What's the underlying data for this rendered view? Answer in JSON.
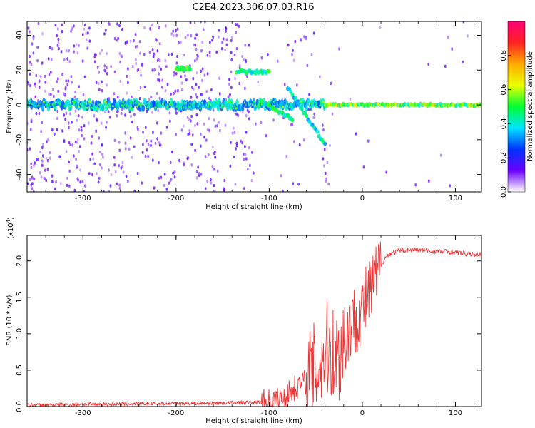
{
  "title": "C2E4.2023.306.07.03.R16",
  "chart_data": [
    {
      "type": "heatmap",
      "xlabel": "Height of straight line (km)",
      "ylabel": "Frequency (Hz)",
      "xlim": [
        -360,
        128
      ],
      "ylim": [
        -50,
        48
      ],
      "xticks": [
        -300,
        -200,
        -100,
        0,
        100
      ],
      "xtick_labels": [
        "-300",
        "-200",
        "-100",
        "0",
        "100"
      ],
      "yticks": [
        -40,
        -20,
        0,
        20,
        40
      ],
      "ytick_labels": [
        "-40",
        "-20",
        "0",
        "20",
        "40"
      ],
      "colorbar": {
        "label": "Normalized spectral amplitude",
        "range": [
          0.0,
          1.0
        ],
        "ticks": [
          0.0,
          0.2,
          0.4,
          0.6,
          0.8
        ],
        "tick_labels": [
          "0.0",
          "0.2",
          "0.4",
          "0.6",
          "0.8"
        ],
        "colors": [
          "#ffffff",
          "#6a00ff",
          "#0033ff",
          "#00e5ff",
          "#00ff33",
          "#eaff00",
          "#ffaa00",
          "#ff2222",
          "#ff0077"
        ]
      },
      "features": [
        {
          "name": "carrier",
          "x_range": [
            -360,
            128
          ],
          "freq": 0,
          "amplitude": 0.35
        },
        {
          "name": "upper-branch",
          "x": [
            -200,
            -185
          ],
          "freq": 21,
          "amplitude": 0.5
        },
        {
          "name": "upper-branch-2",
          "x": [
            -135,
            -100
          ],
          "freq": 19,
          "amplitude": 0.45
        },
        {
          "name": "descending-branch",
          "x": [
            -110,
            -75
          ],
          "freq": [
            2,
            -8
          ],
          "amplitude": 0.45
        },
        {
          "name": "descending-branch-2",
          "x": [
            -80,
            -40
          ],
          "freq": [
            10,
            -23
          ],
          "amplitude": 0.4
        }
      ]
    },
    {
      "type": "line",
      "xlabel": "Height of straight line (km)",
      "ylabel": "SNR (10 * v/v)",
      "multiplier": "(x10",
      "multiplier_exp": "4",
      "xlim": [
        -360,
        128
      ],
      "ylim": [
        0,
        23500
      ],
      "xticks": [
        -300,
        -200,
        -100,
        0,
        100
      ],
      "xtick_labels": [
        "-300",
        "-200",
        "-100",
        "0",
        "100"
      ],
      "yticks": [
        0,
        5000,
        10000,
        15000,
        20000
      ],
      "ytick_labels": [
        "0.0",
        "0.5",
        "1.0",
        "1.5",
        "2.0"
      ],
      "series": [
        {
          "color": "#ee3333",
          "x": [
            -360,
            -300,
            -200,
            -150,
            -110,
            -90,
            -80,
            -70,
            -60,
            -50,
            -40,
            -35,
            -30,
            -25,
            -20,
            -15,
            -10,
            -5,
            0,
            5,
            10,
            15,
            20,
            25,
            30,
            40,
            50,
            60,
            70,
            80,
            90,
            100,
            110,
            120,
            128
          ],
          "y": [
            200,
            300,
            400,
            500,
            600,
            900,
            1800,
            2800,
            3500,
            5000,
            7500,
            8000,
            7200,
            6500,
            9500,
            11000,
            11500,
            12500,
            13500,
            14800,
            16000,
            17500,
            19500,
            20500,
            21000,
            21400,
            21500,
            21500,
            21400,
            21300,
            21300,
            21200,
            21000,
            20900,
            20900
          ]
        }
      ]
    }
  ]
}
